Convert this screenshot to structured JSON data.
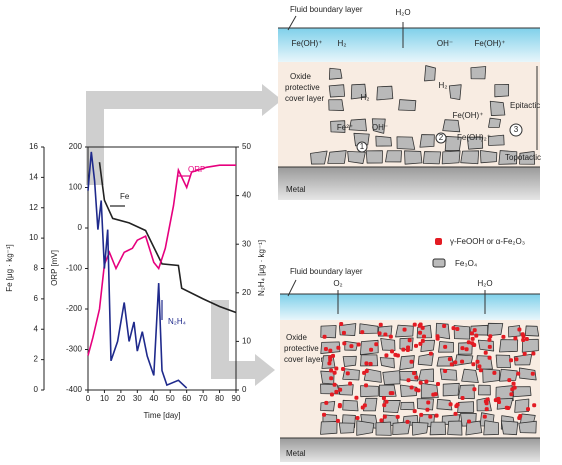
{
  "chart_data": {
    "type": "line",
    "xlabel": "Time [day]",
    "xlim": [
      0,
      90
    ],
    "xticks": [
      0,
      10,
      20,
      30,
      40,
      50,
      60,
      70,
      80,
      90
    ],
    "ylabel": "ORP [mV]",
    "ylim": [
      -400,
      200
    ],
    "yticks": [
      -400,
      -300,
      -200,
      -100,
      0,
      100,
      200
    ],
    "y2label": "N₂H₄ [μg · kg⁻¹]",
    "y2lim": [
      0,
      50
    ],
    "y2ticks": [
      0,
      10,
      20,
      30,
      40,
      50
    ],
    "y3label": "Fe [μg · kg⁻¹]",
    "y3lim": [
      0,
      16
    ],
    "y3ticks": [
      0,
      2,
      4,
      6,
      8,
      10,
      12,
      14,
      16
    ],
    "series": [
      {
        "name": "Fe",
        "color": "#222222",
        "axis": "y3",
        "x": [
          7,
          10,
          15,
          25,
          35,
          45,
          55,
          57,
          70,
          80,
          90
        ],
        "values": [
          15,
          12.5,
          11.3,
          11,
          10.5,
          8.3,
          8.2,
          6.7,
          6,
          5.5,
          5.1
        ]
      },
      {
        "name": "ORP",
        "color": "#e6007e",
        "axis": "y",
        "x": [
          0,
          3,
          7,
          10,
          13,
          17,
          22,
          27,
          30,
          35,
          40,
          43,
          47,
          52,
          55,
          60,
          63,
          67,
          72,
          80,
          90
        ],
        "values": [
          -315,
          -270,
          -200,
          -90,
          -60,
          -100,
          -60,
          -50,
          -30,
          -20,
          -85,
          -100,
          -50,
          55,
          143,
          100,
          138,
          143,
          150,
          155,
          155
        ]
      },
      {
        "name": "N₂H₄",
        "color": "#1f2a8c",
        "axis": "y2",
        "x": [
          0,
          2,
          4,
          6,
          8,
          10,
          12,
          14,
          18,
          22,
          25,
          28,
          30,
          33,
          36,
          40,
          43,
          45,
          48,
          55,
          60
        ],
        "values": [
          41,
          49,
          43,
          33,
          39,
          25,
          33,
          6,
          10,
          18,
          10,
          14,
          8,
          12,
          7,
          3,
          22,
          4,
          1,
          2,
          0.4
        ]
      }
    ]
  },
  "diagrams": {
    "top": {
      "fluid": "Fluid boundary layer",
      "water": "H₂O",
      "species": [
        "Fe(OH)⁺",
        "H₂",
        "OH⁻",
        "Fe(OH)⁺"
      ],
      "oxide": [
        "Oxide",
        "protective",
        "cover layer"
      ],
      "epitactic": "Epitactic",
      "topotactic": "Topotactic",
      "metal": "Metal",
      "inner": [
        "H₂",
        "Fe²⁺",
        "OH⁻",
        "H₂",
        "Fe(OH)⁺",
        "Fe(OH)₂⁺"
      ],
      "steps": [
        "1",
        "2",
        "3"
      ]
    },
    "legend": [
      "γ-FeOOH or α-Fe₂O₃",
      "Fe₃O₄"
    ],
    "bottom": {
      "fluid": "Fluid boundary layer",
      "oxygen": "O₂",
      "water": "H₂O",
      "oxide": [
        "Oxide",
        "protective",
        "cover layer"
      ],
      "metal": "Metal"
    }
  }
}
